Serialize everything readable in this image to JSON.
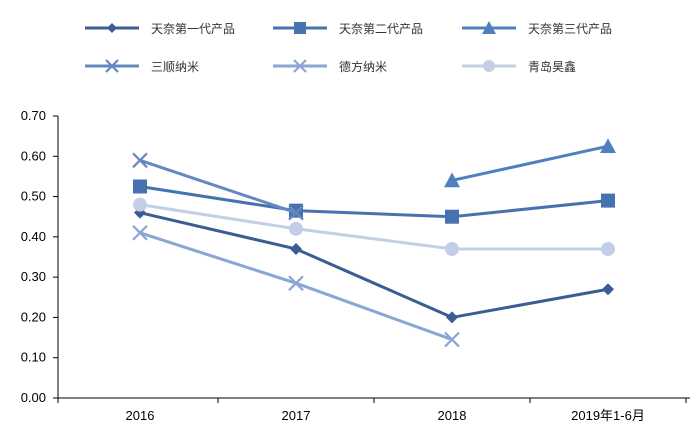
{
  "chart_data": {
    "type": "line",
    "categories": [
      "2016",
      "2017",
      "2018",
      "2019年1-6月"
    ],
    "ylim": [
      0,
      0.7
    ],
    "yticks": [
      "0.00",
      "0.10",
      "0.20",
      "0.30",
      "0.40",
      "0.50",
      "0.60",
      "0.70"
    ],
    "grid": false,
    "legend_position": "top",
    "series": [
      {
        "name": "天奈第一代产品",
        "marker": "diamond",
        "color": "#3b5e92",
        "values": [
          0.46,
          0.37,
          0.2,
          0.27
        ]
      },
      {
        "name": "天奈第二代产品",
        "marker": "square",
        "color": "#4673b0",
        "values": [
          0.525,
          0.465,
          0.45,
          0.49
        ]
      },
      {
        "name": "天奈第三代产品",
        "marker": "triangle",
        "color": "#4f80bd",
        "values": [
          null,
          null,
          0.54,
          0.625
        ]
      },
      {
        "name": "三顺纳米",
        "marker": "x",
        "color": "#6688c0",
        "values": [
          0.59,
          0.46,
          null,
          null
        ]
      },
      {
        "name": "德方纳米",
        "marker": "x",
        "color": "#8aa6d4",
        "values": [
          0.41,
          0.285,
          0.145,
          null
        ]
      },
      {
        "name": "青岛昊鑫",
        "marker": "circle",
        "color": "#c3cfe6",
        "values": [
          0.48,
          0.42,
          0.37,
          0.37
        ]
      }
    ]
  }
}
